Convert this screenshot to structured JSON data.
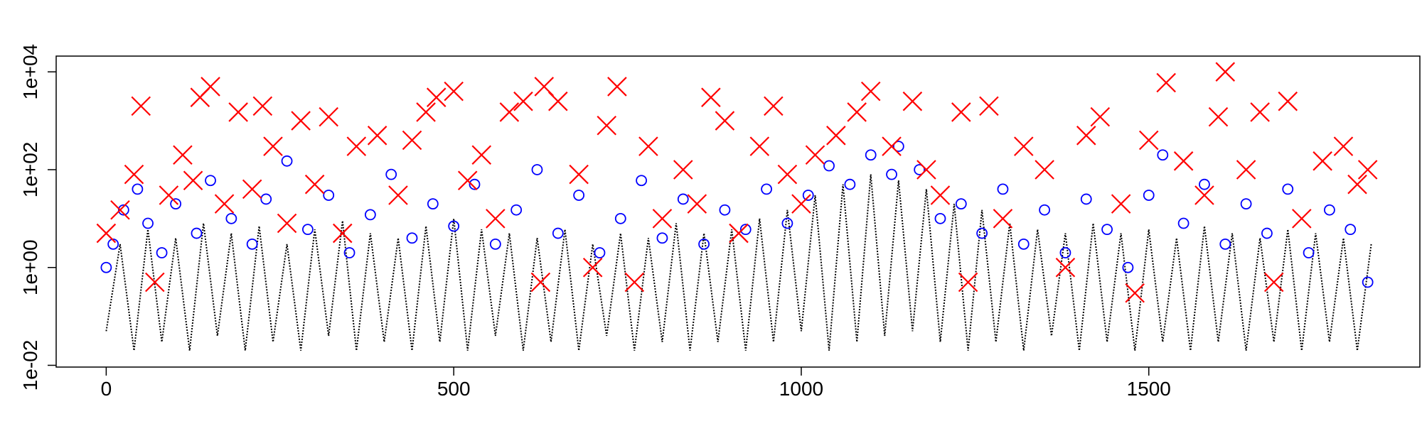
{
  "chart_data": {
    "type": "scatter",
    "log_y": true,
    "xlim": [
      -72,
      1890
    ],
    "ylim": [
      0.0092,
      21000
    ],
    "xticks": [
      0,
      500,
      1000,
      1500
    ],
    "yticks": [
      {
        "value": 0.01,
        "label": "1e-02"
      },
      {
        "value": 1,
        "label": "1e+00"
      },
      {
        "value": 100,
        "label": "1e+02"
      },
      {
        "value": 10000,
        "label": "1e+04"
      }
    ],
    "series": [
      {
        "kind": "line",
        "color": "#000000",
        "x": [
          0,
          20,
          40,
          60,
          80,
          100,
          120,
          140,
          160,
          180,
          200,
          220,
          240,
          260,
          280,
          300,
          320,
          340,
          360,
          380,
          400,
          420,
          440,
          460,
          480,
          500,
          520,
          540,
          560,
          580,
          600,
          620,
          640,
          660,
          680,
          700,
          720,
          740,
          760,
          780,
          800,
          820,
          840,
          860,
          880,
          900,
          920,
          940,
          960,
          980,
          1000,
          1020,
          1040,
          1060,
          1080,
          1100,
          1120,
          1140,
          1160,
          1180,
          1200,
          1220,
          1240,
          1260,
          1280,
          1300,
          1320,
          1340,
          1360,
          1380,
          1400,
          1420,
          1440,
          1460,
          1480,
          1500,
          1520,
          1540,
          1560,
          1580,
          1600,
          1620,
          1640,
          1660,
          1680,
          1700,
          1720,
          1740,
          1760,
          1780,
          1800,
          1820
        ],
        "values": [
          0.05,
          3,
          0.02,
          6,
          0.03,
          4,
          0.02,
          8,
          0.04,
          5,
          0.02,
          7,
          0.03,
          3,
          0.02,
          6,
          0.04,
          9,
          0.02,
          5,
          0.03,
          4,
          0.02,
          7,
          0.03,
          10,
          0.02,
          6,
          0.04,
          5,
          0.02,
          4,
          0.03,
          6,
          0.02,
          3,
          0.04,
          5,
          0.02,
          4,
          0.03,
          8,
          0.02,
          5,
          0.03,
          6,
          0.02,
          10,
          0.03,
          15,
          0.05,
          30,
          0.02,
          50,
          0.03,
          80,
          0.04,
          60,
          0.05,
          40,
          0.03,
          20,
          0.02,
          15,
          0.03,
          8,
          0.02,
          6,
          0.04,
          5,
          0.02,
          8,
          0.03,
          5,
          0.02,
          6,
          0.03,
          4,
          0.02,
          7,
          0.03,
          5,
          0.02,
          4,
          0.03,
          6,
          0.02,
          5,
          0.03,
          4,
          0.02,
          3
        ]
      },
      {
        "kind": "points",
        "marker": "circle",
        "color": "#0000ff",
        "x": [
          0,
          10,
          25,
          45,
          60,
          80,
          100,
          130,
          150,
          180,
          210,
          230,
          260,
          290,
          320,
          350,
          380,
          410,
          440,
          470,
          500,
          530,
          560,
          590,
          620,
          650,
          680,
          710,
          740,
          770,
          800,
          830,
          860,
          890,
          920,
          950,
          980,
          1010,
          1040,
          1070,
          1100,
          1130,
          1140,
          1170,
          1200,
          1230,
          1260,
          1290,
          1320,
          1350,
          1380,
          1410,
          1440,
          1470,
          1500,
          1520,
          1550,
          1580,
          1610,
          1640,
          1670,
          1700,
          1730,
          1760,
          1790,
          1815
        ],
        "values": [
          1,
          3,
          15,
          40,
          8,
          2,
          20,
          5,
          60,
          10,
          3,
          25,
          150,
          6,
          30,
          2,
          12,
          80,
          4,
          20,
          7,
          50,
          3,
          15,
          100,
          5,
          30,
          2,
          10,
          60,
          4,
          25,
          3,
          15,
          6,
          40,
          8,
          30,
          120,
          50,
          200,
          80,
          300,
          100,
          10,
          20,
          5,
          40,
          3,
          15,
          2,
          25,
          6,
          1,
          30,
          200,
          8,
          50,
          3,
          20,
          5,
          40,
          2,
          15,
          6,
          0.5
        ]
      },
      {
        "kind": "points",
        "marker": "x",
        "color": "#ff0000",
        "x": [
          0,
          20,
          40,
          50,
          70,
          90,
          110,
          125,
          135,
          150,
          170,
          190,
          210,
          225,
          240,
          260,
          280,
          300,
          320,
          340,
          360,
          390,
          420,
          440,
          460,
          475,
          500,
          520,
          540,
          560,
          580,
          600,
          625,
          630,
          650,
          680,
          700,
          720,
          735,
          760,
          780,
          800,
          830,
          850,
          870,
          890,
          910,
          940,
          960,
          980,
          1000,
          1020,
          1050,
          1080,
          1100,
          1130,
          1160,
          1180,
          1200,
          1230,
          1240,
          1270,
          1290,
          1320,
          1350,
          1380,
          1410,
          1430,
          1460,
          1480,
          1500,
          1525,
          1550,
          1580,
          1600,
          1610,
          1640,
          1660,
          1680,
          1700,
          1720,
          1750,
          1780,
          1800,
          1815
        ],
        "values": [
          5,
          15,
          80,
          2000,
          0.5,
          30,
          200,
          60,
          3000,
          5000,
          20,
          1500,
          40,
          2000,
          300,
          8,
          1000,
          50,
          1200,
          5,
          300,
          500,
          30,
          400,
          1500,
          3000,
          4000,
          60,
          200,
          10,
          1500,
          2500,
          0.5,
          5000,
          2500,
          80,
          1,
          800,
          5000,
          0.5,
          300,
          10,
          100,
          20,
          3000,
          1000,
          5,
          300,
          2000,
          80,
          20,
          200,
          500,
          1500,
          4000,
          300,
          2500,
          100,
          30,
          1500,
          0.5,
          2000,
          10,
          300,
          100,
          1,
          500,
          1200,
          20,
          0.3,
          400,
          6000,
          150,
          30,
          1200,
          10000,
          100,
          1500,
          0.5,
          2500,
          10,
          150,
          300,
          50,
          100
        ]
      }
    ]
  }
}
